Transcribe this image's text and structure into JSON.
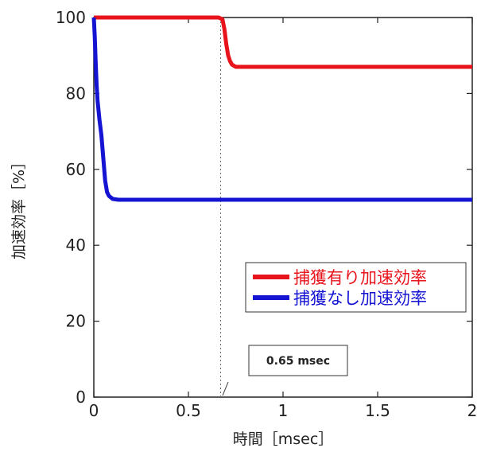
{
  "chart_data": {
    "type": "line",
    "title": "",
    "xlabel": "時間［msec］",
    "ylabel": "加速効率［%］",
    "xlim": [
      0,
      2
    ],
    "ylim": [
      0,
      100
    ],
    "xticks": [
      0,
      0.5,
      1,
      1.5,
      2
    ],
    "xtick_labels": [
      "0",
      "0.5",
      "1",
      "1.5",
      "2"
    ],
    "yticks": [
      0,
      20,
      40,
      60,
      80,
      100
    ],
    "ytick_labels": [
      "0",
      "20",
      "40",
      "60",
      "80",
      "100"
    ],
    "grid": false,
    "legend_position": "center-right",
    "series": [
      {
        "name": "捕獲有り加速効率",
        "color": "#e8141c",
        "x": [
          0,
          0.66,
          0.68,
          0.69,
          0.7,
          0.71,
          0.72,
          0.73,
          0.75,
          2.0
        ],
        "y": [
          100,
          100,
          99.5,
          97,
          93,
          90,
          88.5,
          87.6,
          87,
          87
        ]
      },
      {
        "name": "捕獲なし加速効率",
        "color": "#1414d2",
        "x": [
          0,
          0.005,
          0.01,
          0.015,
          0.02,
          0.03,
          0.04,
          0.05,
          0.06,
          0.07,
          0.08,
          0.1,
          0.13,
          0.16,
          2.0
        ],
        "y": [
          100,
          95,
          88,
          82,
          78,
          73,
          69,
          63,
          57,
          54,
          53,
          52.2,
          52,
          52,
          52
        ]
      }
    ],
    "annotations": [
      {
        "text": "0.65 msec",
        "x": 0.67,
        "style": "dotted-vertical-line"
      }
    ]
  }
}
